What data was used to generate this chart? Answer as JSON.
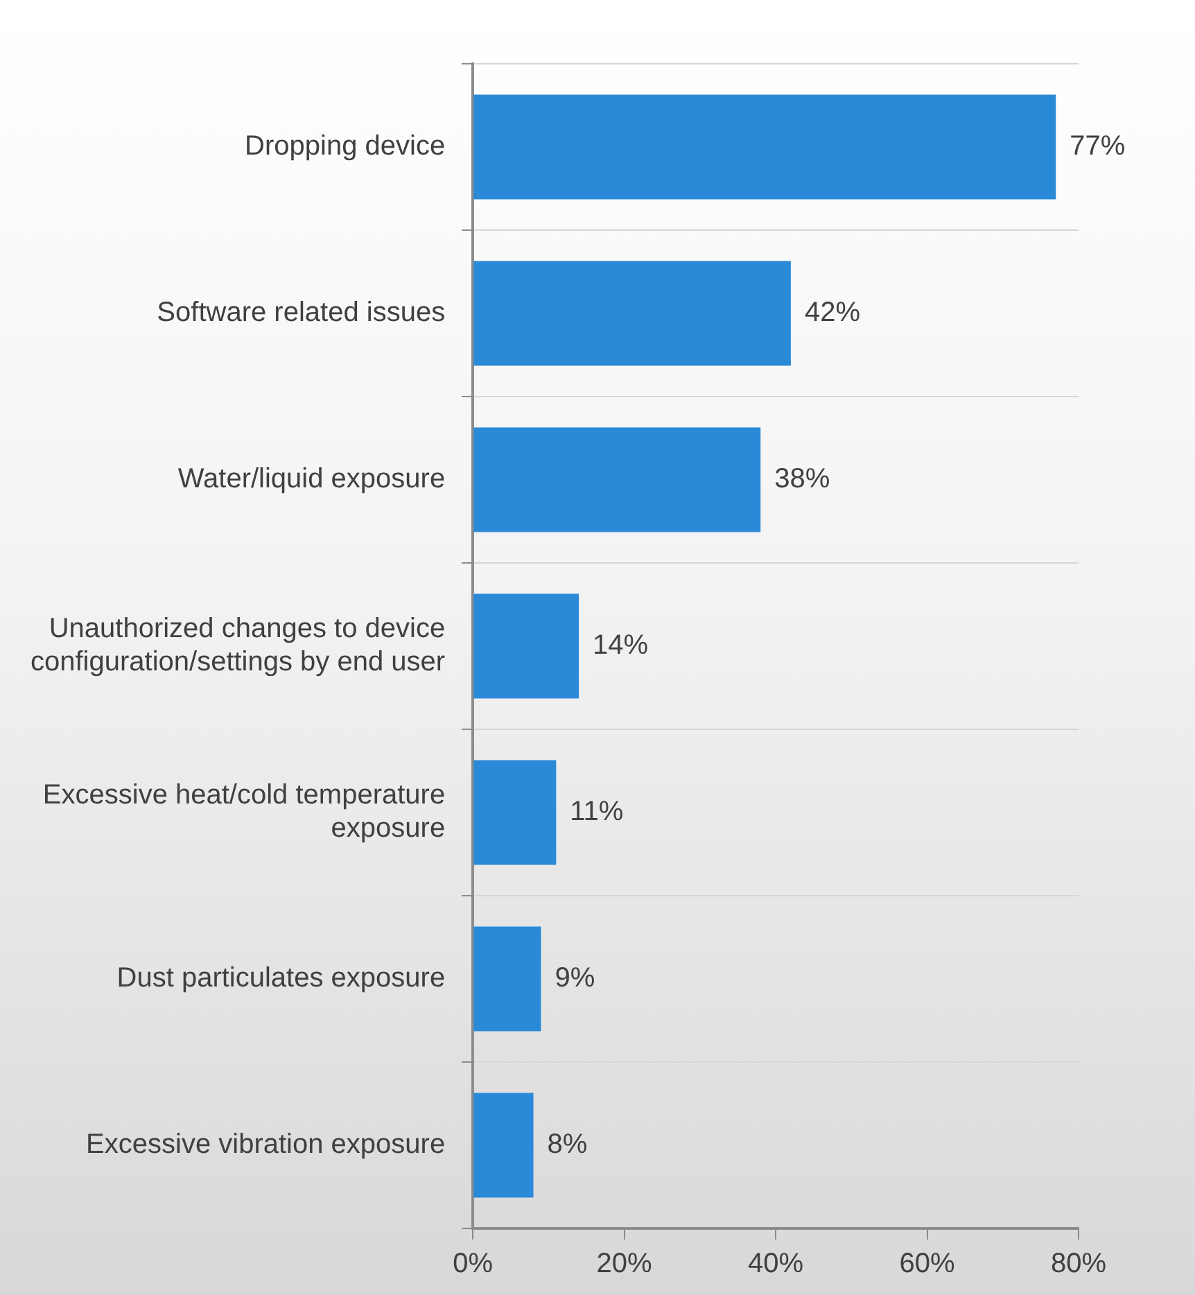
{
  "chart_data": {
    "type": "bar",
    "orientation": "horizontal",
    "categories": [
      "Dropping device",
      "Software related issues",
      "Water/liquid exposure",
      "Unauthorized changes to device configuration/settings by end user",
      "Excessive heat/cold temperature exposure",
      "Dust particulates exposure",
      "Excessive vibration exposure"
    ],
    "values": [
      77,
      42,
      38,
      14,
      11,
      9,
      8
    ],
    "value_labels": [
      "77%",
      "42%",
      "38%",
      "14%",
      "11%",
      "9%",
      "8%"
    ],
    "color": "#2a8ad8",
    "xlim": [
      0,
      80
    ],
    "xticks": [
      {
        "value": 0,
        "label": "0%"
      },
      {
        "value": 20,
        "label": "20%"
      },
      {
        "value": 40,
        "label": "40%"
      },
      {
        "value": 60,
        "label": "60%"
      },
      {
        "value": 80,
        "label": "80%"
      }
    ],
    "grid": "y"
  }
}
